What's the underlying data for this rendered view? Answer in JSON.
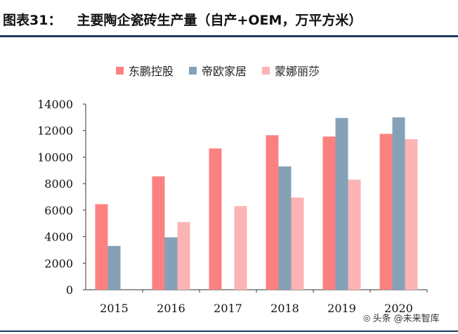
{
  "header": {
    "label": "图表31：",
    "title": "主要陶企瓷砖生产量（自产+OEM，万平方米）"
  },
  "colors": {
    "brand_rule": "#1f3a5f"
  },
  "watermark": {
    "icon": "at-icon",
    "text": "头条 @未来智库"
  },
  "chart_data": {
    "type": "bar",
    "categories": [
      "2015",
      "2016",
      "2017",
      "2018",
      "2019",
      "2020"
    ],
    "series": [
      {
        "name": "东鹏控股",
        "color": "#fb8180",
        "values": [
          6450,
          8550,
          10650,
          11650,
          11550,
          11750
        ]
      },
      {
        "name": "帝欧家居",
        "color": "#84a1b8",
        "values": [
          3300,
          3950,
          null,
          9300,
          12950,
          13000
        ]
      },
      {
        "name": "蒙娜丽莎",
        "color": "#fcb4b4",
        "values": [
          null,
          5100,
          6300,
          6950,
          8300,
          11350
        ]
      }
    ],
    "ylim": [
      0,
      14000
    ],
    "yticks": [
      0,
      2000,
      4000,
      6000,
      8000,
      10000,
      12000,
      14000
    ],
    "grid": false,
    "legend_position": "top"
  }
}
